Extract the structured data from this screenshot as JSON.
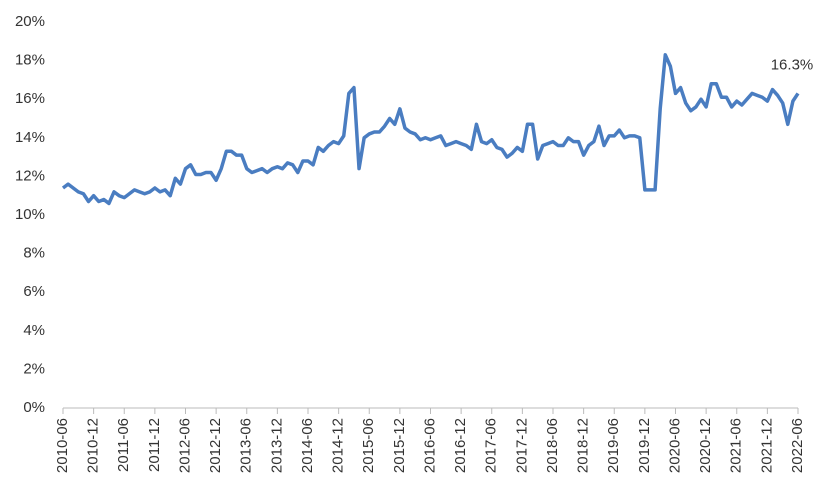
{
  "chart_data": {
    "type": "line",
    "categories": [
      "2010-06",
      null,
      null,
      null,
      null,
      null,
      "2010-12",
      null,
      null,
      null,
      null,
      null,
      "2011-06",
      null,
      null,
      null,
      null,
      null,
      "2011-12",
      null,
      null,
      null,
      null,
      null,
      "2012-06",
      null,
      null,
      null,
      null,
      null,
      "2012-12",
      null,
      null,
      null,
      null,
      null,
      "2013-06",
      null,
      null,
      null,
      null,
      null,
      "2013-12",
      null,
      null,
      null,
      null,
      null,
      "2014-06",
      null,
      null,
      null,
      null,
      null,
      "2014-12",
      null,
      null,
      null,
      null,
      null,
      "2015-06",
      null,
      null,
      null,
      null,
      null,
      "2015-12",
      null,
      null,
      null,
      null,
      null,
      "2016-06",
      null,
      null,
      null,
      null,
      null,
      "2016-12",
      null,
      null,
      null,
      null,
      null,
      "2017-06",
      null,
      null,
      null,
      null,
      null,
      "2017-12",
      null,
      null,
      null,
      null,
      null,
      "2018-06",
      null,
      null,
      null,
      null,
      null,
      "2018-12",
      null,
      null,
      null,
      null,
      null,
      "2019-06",
      null,
      null,
      null,
      null,
      null,
      "2019-12",
      null,
      null,
      null,
      null,
      null,
      "2020-06",
      null,
      null,
      null,
      null,
      null,
      "2020-12",
      null,
      null,
      null,
      null,
      null,
      "2021-06",
      null,
      null,
      null,
      null,
      null,
      "2021-12",
      null,
      null,
      null,
      null,
      null,
      "2022-06"
    ],
    "values": [
      11.4,
      11.6,
      11.4,
      11.2,
      11.1,
      10.7,
      11.0,
      10.7,
      10.8,
      10.6,
      11.2,
      11.0,
      10.9,
      11.1,
      11.3,
      11.2,
      11.1,
      11.2,
      11.4,
      11.2,
      11.3,
      11.0,
      11.9,
      11.6,
      12.4,
      12.6,
      12.1,
      12.1,
      12.2,
      12.2,
      11.8,
      12.4,
      13.3,
      13.3,
      13.1,
      13.1,
      12.4,
      12.2,
      12.3,
      12.4,
      12.2,
      12.4,
      12.5,
      12.4,
      12.7,
      12.6,
      12.2,
      12.8,
      12.8,
      12.6,
      13.5,
      13.3,
      13.6,
      13.8,
      13.7,
      14.1,
      16.3,
      16.6,
      12.4,
      14.0,
      14.2,
      14.3,
      14.3,
      14.6,
      15.0,
      14.7,
      15.5,
      14.5,
      14.3,
      14.2,
      13.9,
      14.0,
      13.9,
      14.0,
      14.1,
      13.6,
      13.7,
      13.8,
      13.7,
      13.6,
      13.4,
      14.7,
      13.8,
      13.7,
      13.9,
      13.5,
      13.4,
      13.0,
      13.2,
      13.5,
      13.3,
      14.7,
      14.7,
      12.9,
      13.6,
      13.7,
      13.8,
      13.6,
      13.6,
      14.0,
      13.8,
      13.8,
      13.1,
      13.6,
      13.8,
      14.6,
      13.6,
      14.1,
      14.1,
      14.4,
      14.0,
      14.1,
      14.1,
      14.0,
      11.3,
      11.3,
      11.3,
      15.5,
      18.3,
      17.7,
      16.3,
      16.6,
      15.8,
      15.4,
      15.6,
      16.0,
      15.6,
      16.8,
      16.8,
      16.1,
      16.1,
      15.6,
      15.9,
      15.7,
      16.0,
      16.3,
      16.2,
      16.1,
      15.9,
      16.5,
      16.2,
      15.8,
      14.7,
      15.9,
      16.3
    ],
    "value_labels": [
      null,
      null,
      null,
      null,
      null,
      null,
      null,
      null,
      null,
      null,
      null,
      null,
      null,
      null,
      null,
      null,
      null,
      null,
      null,
      null,
      null,
      null,
      null,
      null,
      null,
      null,
      null,
      null,
      null,
      null,
      null,
      null,
      null,
      null,
      null,
      null,
      null,
      null,
      null,
      null,
      null,
      null,
      null,
      null,
      null,
      null,
      null,
      null,
      null,
      null,
      null,
      null,
      null,
      null,
      null,
      null,
      null,
      null,
      null,
      null,
      null,
      null,
      null,
      null,
      null,
      null,
      null,
      null,
      null,
      null,
      null,
      null,
      null,
      null,
      null,
      null,
      null,
      null,
      null,
      null,
      null,
      null,
      null,
      null,
      null,
      null,
      null,
      null,
      null,
      null,
      null,
      null,
      null,
      null,
      null,
      null,
      null,
      null,
      null,
      null,
      null,
      null,
      null,
      null,
      null,
      null,
      null,
      null,
      null,
      null,
      null,
      null,
      null,
      null,
      null,
      null,
      null,
      null,
      null,
      null,
      null,
      null,
      null,
      null,
      null,
      null,
      null,
      null,
      null,
      null,
      null,
      null,
      null,
      null,
      null,
      null,
      null,
      null,
      null,
      null,
      null,
      null,
      null,
      null,
      "16.3%"
    ],
    "color": "#4a7dc1",
    "ylim": [
      0,
      20
    ],
    "yticks": [
      {
        "value": 0,
        "label": "0%"
      },
      {
        "value": 2,
        "label": "2%"
      },
      {
        "value": 4,
        "label": "4%"
      },
      {
        "value": 6,
        "label": "6%"
      },
      {
        "value": 8,
        "label": "8%"
      },
      {
        "value": 10,
        "label": "10%"
      },
      {
        "value": 12,
        "label": "12%"
      },
      {
        "value": 14,
        "label": "14%"
      },
      {
        "value": 16,
        "label": "16%"
      },
      {
        "value": 18,
        "label": "18%"
      },
      {
        "value": 20,
        "label": "20%"
      }
    ],
    "grid": false
  }
}
